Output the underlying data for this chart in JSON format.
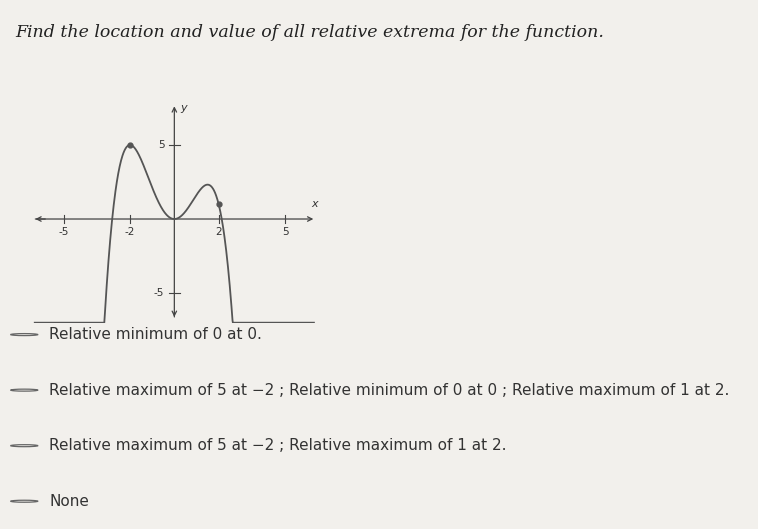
{
  "title": "Find the location and value of all relative extrema for the function.",
  "title_fontsize": 12.5,
  "graph": {
    "xlim": [
      -6.5,
      6.5
    ],
    "ylim": [
      -7,
      8
    ],
    "xticks": [
      -5,
      -2,
      2,
      5
    ],
    "yticks": [
      -5,
      5
    ],
    "xlabel": "x",
    "ylabel": "y",
    "curve_color": "#555555",
    "dot_color": "#555555",
    "dot_points": [
      [
        -2,
        5
      ],
      [
        2,
        1
      ]
    ],
    "axis_color": "#444444",
    "tick_label_fontsize": 7.5,
    "poly_coeffs": [
      -0.375,
      -0.25,
      2.25,
      0.0,
      0.0
    ]
  },
  "options": [
    "Relative minimum of 0 at 0.",
    "Relative maximum of 5 at −2 ; Relative minimum of 0 at 0 ; Relative maximum of 1 at 2.",
    "Relative maximum of 5 at −2 ; Relative maximum of 1 at 2.",
    "None"
  ],
  "option_fontsize": 11,
  "bg_color": "#f2f0ec",
  "divider_color": "#bbbbbb"
}
